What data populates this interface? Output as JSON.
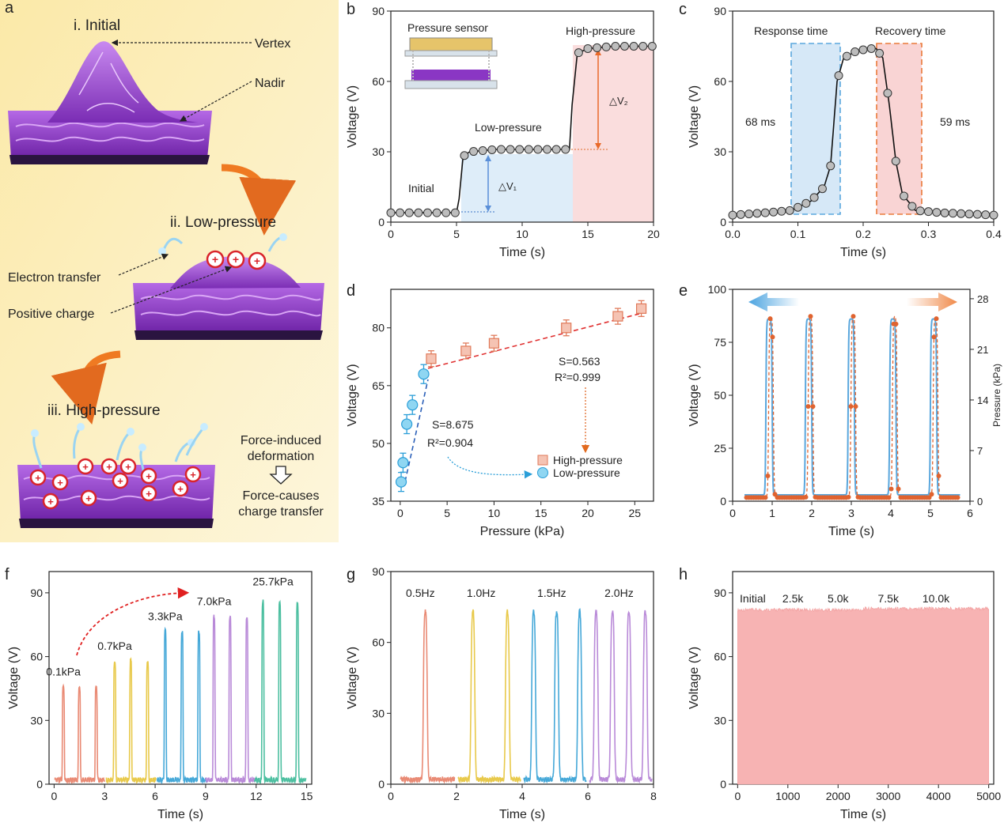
{
  "panel_a": {
    "letter": "a",
    "stage1": "i. Initial",
    "stage2": "ii. Low-pressure",
    "stage3": "iii. High-pressure",
    "label_vertex": "Vertex",
    "label_nadir": "Nadir",
    "label_electron": "Electron transfer",
    "label_positive": "Positive charge",
    "flow_line1": "Force-induced",
    "flow_line2": "deformation",
    "flow_line3": "Force-causes",
    "flow_line4": "charge transfer",
    "colors": {
      "bg": "#fbefc0",
      "film": "#8a36c4",
      "arrow": "#ef7a22",
      "charge": "#d9242b"
    }
  },
  "chart_data": [
    {
      "id": "b",
      "type": "line",
      "letter": "b",
      "xlabel": "Time (s)",
      "ylabel": "Voltage (V)",
      "xlim": [
        0,
        20
      ],
      "ylim": [
        0,
        90
      ],
      "xticks": [
        "0",
        "5",
        "10",
        "15",
        "20"
      ],
      "yticks": [
        "0",
        "30",
        "60",
        "90"
      ],
      "annotations": [
        "Initial",
        "Low-pressure",
        "High-pressure",
        "Pressure sensor",
        "△V₁",
        "△V₂"
      ],
      "series": [
        {
          "values_x": [
            0,
            5.0,
            5.2,
            5.5,
            6,
            8,
            10,
            13.6,
            13.8,
            14.2,
            15,
            17,
            20
          ],
          "values_y": [
            4,
            4,
            10,
            28,
            30,
            31,
            31,
            31,
            50,
            72,
            74,
            75,
            75
          ]
        }
      ],
      "colors": {
        "line": "#111111",
        "marker": "#bdbdbd",
        "low_band": "#d6e8f7",
        "high_band": "#f9d4d4"
      }
    },
    {
      "id": "c",
      "type": "line",
      "letter": "c",
      "xlabel": "Time (s)",
      "ylabel": "Voltage (V)",
      "xlim": [
        0,
        0.4
      ],
      "ylim": [
        0,
        90
      ],
      "xticks": [
        "0.0",
        "0.1",
        "0.2",
        "0.3",
        "0.4"
      ],
      "yticks": [
        "0",
        "30",
        "60",
        "90"
      ],
      "annotations": [
        "Response time",
        "Recovery time",
        "68 ms",
        "59 ms"
      ],
      "series": [
        {
          "values_x": [
            0,
            0.05,
            0.09,
            0.12,
            0.14,
            0.15,
            0.16,
            0.17,
            0.19,
            0.21,
            0.22,
            0.23,
            0.24,
            0.25,
            0.26,
            0.28,
            0.32,
            0.4
          ],
          "values_y": [
            3,
            4,
            5,
            9,
            15,
            24,
            60,
            70,
            73,
            74,
            74,
            70,
            50,
            26,
            12,
            5,
            4,
            3
          ]
        }
      ],
      "colors": {
        "response": "#5aa7dd",
        "recovery": "#ea7a3a"
      }
    },
    {
      "id": "d",
      "type": "scatter",
      "letter": "d",
      "xlabel": "Pressure (kPa)",
      "ylabel": "Voltage (V)",
      "xlim": [
        -1,
        27
      ],
      "ylim": [
        35,
        90
      ],
      "xticks": [
        "0",
        "5",
        "10",
        "15",
        "20",
        "25"
      ],
      "yticks": [
        "35",
        "50",
        "65",
        "80"
      ],
      "fit_low": "S=8.675",
      "r2_low": "R²=0.904",
      "fit_high": "S=0.563",
      "r2_high": "R²=0.999",
      "series": [
        {
          "name": "High-pressure",
          "values_x": [
            3.3,
            7.0,
            10.0,
            17.7,
            23.2,
            25.7
          ],
          "values_y": [
            72,
            74,
            76,
            80,
            83,
            85
          ]
        },
        {
          "name": "Low-pressure",
          "values_x": [
            0.1,
            0.3,
            0.7,
            1.3,
            2.5
          ],
          "values_y": [
            40,
            45,
            55,
            60,
            68
          ]
        }
      ],
      "colors": {
        "high": "#f5a58e",
        "low": "#7fcdf0"
      }
    },
    {
      "id": "e",
      "type": "line",
      "letter": "e",
      "xlabel": "Time (s)",
      "ylabel": "Voltage (V)",
      "y2label": "Pressure (kPa)",
      "xlim": [
        0,
        6
      ],
      "ylim": [
        0,
        100
      ],
      "y2lim": [
        0,
        29.3
      ],
      "xticks": [
        "0",
        "1",
        "2",
        "3",
        "4",
        "5",
        "6"
      ],
      "yticks": [
        "0",
        "25",
        "50",
        "75",
        "100"
      ],
      "y2ticks": [
        "0",
        "7",
        "14",
        "21",
        "28"
      ],
      "series": [
        {
          "name": "Voltage",
          "peaks_x": [
            0.92,
            1.92,
            3.0,
            4.05,
            5.08
          ],
          "peak": 86,
          "base": 3
        },
        {
          "name": "Pressure",
          "peaks_x": [
            0.97,
            1.97,
            3.05,
            4.1,
            5.13
          ],
          "peak": 25.7,
          "base": 0.5
        }
      ],
      "colors": {
        "voltage": "#5aa7dd",
        "pressure": "#e0632f"
      }
    },
    {
      "id": "f",
      "type": "line",
      "letter": "f",
      "xlabel": "Time (s)",
      "ylabel": "Voltage (V)",
      "xlim": [
        -0.3,
        15.3
      ],
      "ylim": [
        0,
        100
      ],
      "xticks": [
        "0",
        "3",
        "6",
        "9",
        "12",
        "15"
      ],
      "yticks": [
        "0",
        "30",
        "60",
        "90"
      ],
      "series": [
        {
          "name": "0.1kPa",
          "peaks_x": [
            0.55,
            1.5,
            2.5
          ],
          "peak": 46
        },
        {
          "name": "0.7kPa",
          "peaks_x": [
            3.6,
            4.55,
            5.55
          ],
          "peak": 58
        },
        {
          "name": "3.3kPa",
          "peaks_x": [
            6.6,
            7.6,
            8.6
          ],
          "peak": 72
        },
        {
          "name": "7.0kPa",
          "peaks_x": [
            9.5,
            10.45,
            11.45
          ],
          "peak": 79
        },
        {
          "name": "25.7kPa",
          "peaks_x": [
            12.4,
            13.4,
            14.45
          ],
          "peak": 86
        }
      ],
      "colors": [
        "#e98a74",
        "#e8c94a",
        "#45a8d8",
        "#b98ad8",
        "#4cbfa0"
      ]
    },
    {
      "id": "g",
      "type": "line",
      "letter": "g",
      "xlabel": "Time (s)",
      "ylabel": "Voltage (V)",
      "xlim": [
        0,
        8
      ],
      "ylim": [
        0,
        90
      ],
      "xticks": [
        "0",
        "2",
        "4",
        "6",
        "8"
      ],
      "yticks": [
        "0",
        "30",
        "60",
        "90"
      ],
      "series": [
        {
          "name": "0.5Hz",
          "peaks_x": [
            1.05
          ],
          "peak": 74
        },
        {
          "name": "1.0Hz",
          "peaks_x": [
            2.5,
            3.55
          ],
          "peak": 74
        },
        {
          "name": "1.5Hz",
          "peaks_x": [
            4.35,
            5.05,
            5.75
          ],
          "peak": 74
        },
        {
          "name": "2.0Hz",
          "peaks_x": [
            6.25,
            6.75,
            7.25,
            7.75
          ],
          "peak": 74
        }
      ],
      "colors": [
        "#e98a74",
        "#e8c94a",
        "#45a8d8",
        "#b98ad8"
      ]
    },
    {
      "id": "h",
      "type": "area",
      "letter": "h",
      "xlabel": "Time (s)",
      "ylabel": "Voltage (V)",
      "xlim": [
        -100,
        5100
      ],
      "ylim": [
        0,
        100
      ],
      "xticks": [
        "0",
        "1000",
        "2000",
        "3000",
        "4000",
        "5000"
      ],
      "yticks": [
        "0",
        "30",
        "60",
        "90"
      ],
      "labels": [
        "Initial",
        "2.5k",
        "5.0k",
        "7.5k",
        "10.0k"
      ],
      "series": [
        {
          "name": "Voltage",
          "x_start": 0,
          "x_end": 5000,
          "level": 82
        }
      ],
      "colors": {
        "fill": "#f7b3b3"
      }
    }
  ]
}
